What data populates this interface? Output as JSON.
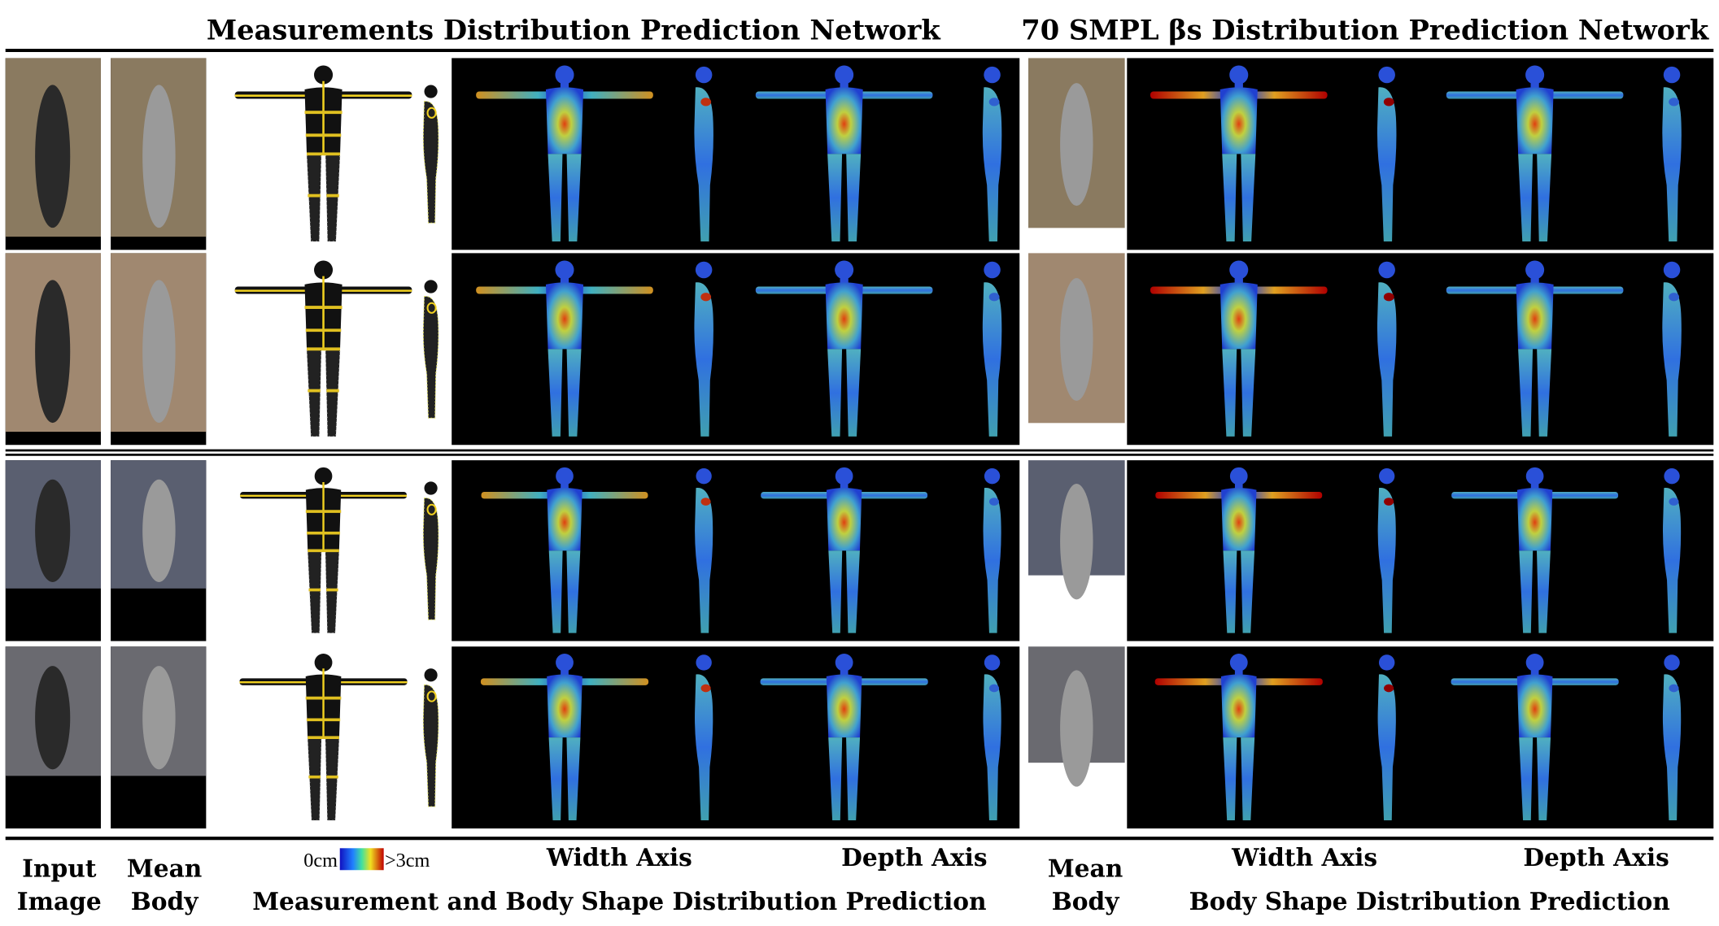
{
  "header": {
    "left_title": "Measurements Distribution Prediction Network",
    "right_title": "70 SMPL βs Distribution Prediction Network"
  },
  "footer": {
    "input_label": [
      "Input",
      "Image"
    ],
    "mean_body_label": [
      "Mean",
      "Body"
    ],
    "colorbar_min": "0cm",
    "colorbar_max": ">3cm",
    "left_width_axis": "Width Axis",
    "left_depth_axis": "Depth Axis",
    "left_caption": "Measurement and Body Shape Distribution Prediction",
    "right_mean_body_label": [
      "Mean",
      "Body"
    ],
    "right_width_axis": "Width Axis",
    "right_depth_axis": "Depth Axis",
    "right_caption": "Body Shape Distribution Prediction"
  }
}
